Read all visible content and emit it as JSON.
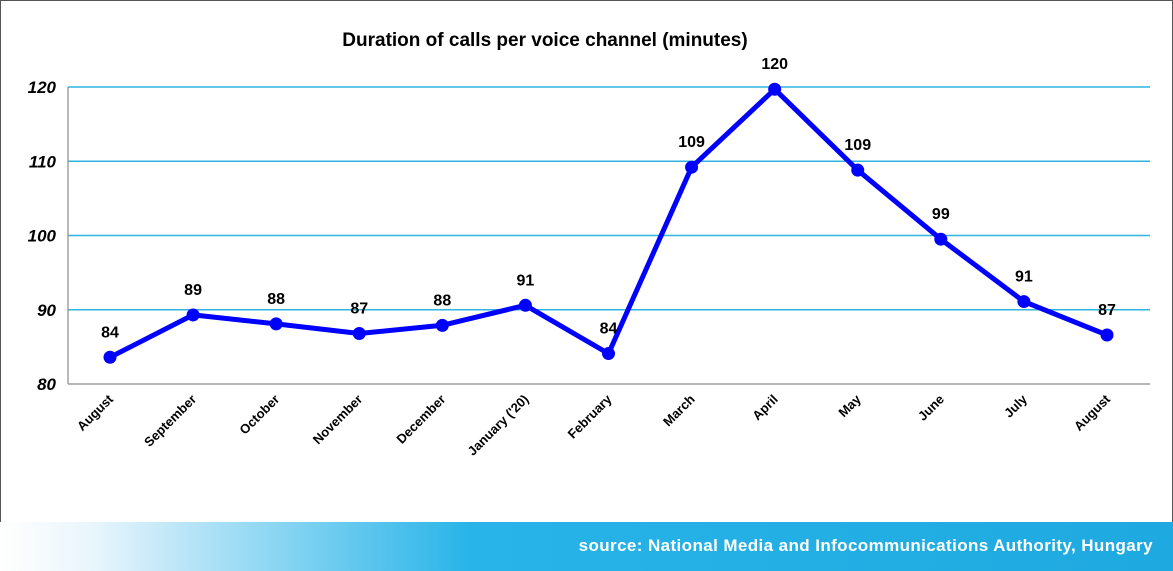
{
  "chart_data": {
    "type": "line",
    "title": "Duration of calls per voice channel (minutes)",
    "categories": [
      "August",
      "September",
      "October",
      "November",
      "December",
      "January ('20)",
      "February",
      "March",
      "April",
      "May",
      "June",
      "July",
      "August"
    ],
    "series": [
      {
        "values": [
          84,
          89,
          88,
          87,
          88,
          91,
          84,
          109,
          120,
          109,
          99,
          91,
          87
        ],
        "plotted": [
          83.6,
          89.3,
          88.1,
          86.8,
          87.9,
          90.6,
          84.1,
          109.2,
          119.7,
          108.8,
          99.5,
          91.1,
          86.6
        ],
        "color": "#0000ff"
      }
    ],
    "ylim": [
      80,
      120
    ],
    "yticks": [
      "80",
      "90",
      "100",
      "110",
      "120"
    ],
    "grid": true,
    "grid_color": "#2fb5e0"
  },
  "footer": {
    "source": "source: National Media and Infocommunications Authority, Hungary"
  }
}
